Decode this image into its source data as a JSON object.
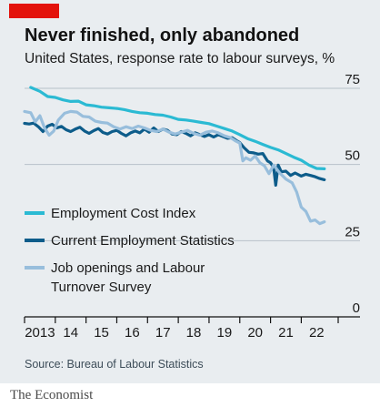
{
  "title": "Never finished, only abandoned",
  "subtitle": "United States, response rate to labour surveys, %",
  "source": "Source: Bureau of Labour Statistics",
  "brand": "The Economist",
  "colors": {
    "background": "#e9edf0",
    "accent_tag": "#e3120b",
    "grid": "#b7c1c9",
    "axis": "#121212"
  },
  "chart_data": {
    "type": "line",
    "xlim": [
      2013.0,
      2023.2
    ],
    "ylim": [
      0,
      75
    ],
    "x_ticks": [
      {
        "value": 2013,
        "label": "2013"
      },
      {
        "value": 2014,
        "label": "14"
      },
      {
        "value": 2015,
        "label": "15"
      },
      {
        "value": 2016,
        "label": "16"
      },
      {
        "value": 2017,
        "label": "17"
      },
      {
        "value": 2018,
        "label": "18"
      },
      {
        "value": 2019,
        "label": "19"
      },
      {
        "value": 2020,
        "label": "20"
      },
      {
        "value": 2021,
        "label": "21"
      },
      {
        "value": 2022,
        "label": "22"
      }
    ],
    "y_ticks": [
      {
        "value": 75,
        "label": "75"
      },
      {
        "value": 50,
        "label": "50"
      },
      {
        "value": 25,
        "label": "25"
      },
      {
        "value": 0,
        "label": "0"
      }
    ],
    "grid": true,
    "legend_position": "bottom-left",
    "series": [
      {
        "name": "Employment Cost Index",
        "color": "#2bbad3",
        "points": [
          [
            2013.2,
            75.3
          ],
          [
            2013.5,
            74.0
          ],
          [
            2013.75,
            72.3
          ],
          [
            2014.0,
            72.0
          ],
          [
            2014.25,
            71.2
          ],
          [
            2014.5,
            70.7
          ],
          [
            2014.75,
            70.8
          ],
          [
            2015.0,
            69.6
          ],
          [
            2015.25,
            69.3
          ],
          [
            2015.5,
            68.8
          ],
          [
            2015.75,
            68.6
          ],
          [
            2016.0,
            68.4
          ],
          [
            2016.25,
            68.0
          ],
          [
            2016.5,
            67.4
          ],
          [
            2016.75,
            67.0
          ],
          [
            2017.0,
            66.8
          ],
          [
            2017.25,
            66.4
          ],
          [
            2017.5,
            66.2
          ],
          [
            2017.75,
            65.6
          ],
          [
            2018.0,
            64.8
          ],
          [
            2018.25,
            64.6
          ],
          [
            2018.5,
            64.2
          ],
          [
            2018.75,
            63.8
          ],
          [
            2019.0,
            63.4
          ],
          [
            2019.25,
            62.6
          ],
          [
            2019.5,
            61.8
          ],
          [
            2019.75,
            61.0
          ],
          [
            2020.0,
            59.8
          ],
          [
            2020.25,
            58.5
          ],
          [
            2020.5,
            57.6
          ],
          [
            2020.75,
            56.6
          ],
          [
            2021.0,
            55.6
          ],
          [
            2021.25,
            54.8
          ],
          [
            2021.5,
            53.6
          ],
          [
            2021.75,
            52.4
          ],
          [
            2022.0,
            51.4
          ],
          [
            2022.25,
            49.8
          ],
          [
            2022.5,
            48.7
          ],
          [
            2022.75,
            48.6
          ]
        ]
      },
      {
        "name": "Current Employment Statistics",
        "color": "#0d5c8a",
        "points": [
          [
            2013.0,
            63.5
          ],
          [
            2013.15,
            63.3
          ],
          [
            2013.3,
            63.6
          ],
          [
            2013.45,
            62.4
          ],
          [
            2013.6,
            60.8
          ],
          [
            2013.75,
            62.6
          ],
          [
            2013.9,
            63.2
          ],
          [
            2014.05,
            62.0
          ],
          [
            2014.2,
            62.5
          ],
          [
            2014.35,
            61.4
          ],
          [
            2014.5,
            60.8
          ],
          [
            2014.65,
            61.6
          ],
          [
            2014.8,
            62.2
          ],
          [
            2014.95,
            61.0
          ],
          [
            2015.1,
            60.2
          ],
          [
            2015.25,
            61.1
          ],
          [
            2015.4,
            61.8
          ],
          [
            2015.55,
            60.5
          ],
          [
            2015.7,
            60.0
          ],
          [
            2015.85,
            60.8
          ],
          [
            2016.0,
            61.2
          ],
          [
            2016.15,
            60.2
          ],
          [
            2016.3,
            59.4
          ],
          [
            2016.45,
            60.4
          ],
          [
            2016.6,
            61.0
          ],
          [
            2016.75,
            60.4
          ],
          [
            2016.9,
            61.6
          ],
          [
            2017.05,
            60.6
          ],
          [
            2017.2,
            62.0
          ],
          [
            2017.35,
            60.8
          ],
          [
            2017.5,
            61.6
          ],
          [
            2017.65,
            61.2
          ],
          [
            2017.8,
            60.0
          ],
          [
            2017.95,
            59.8
          ],
          [
            2018.1,
            60.8
          ],
          [
            2018.25,
            60.2
          ],
          [
            2018.4,
            59.4
          ],
          [
            2018.55,
            60.4
          ],
          [
            2018.7,
            59.8
          ],
          [
            2018.85,
            59.2
          ],
          [
            2019.0,
            59.8
          ],
          [
            2019.15,
            59.0
          ],
          [
            2019.3,
            59.8
          ],
          [
            2019.45,
            59.2
          ],
          [
            2019.6,
            58.6
          ],
          [
            2019.75,
            58.8
          ],
          [
            2019.9,
            57.8
          ],
          [
            2020.0,
            57.2
          ],
          [
            2020.15,
            55.4
          ],
          [
            2020.3,
            54.0
          ],
          [
            2020.45,
            53.8
          ],
          [
            2020.6,
            53.4
          ],
          [
            2020.75,
            53.6
          ],
          [
            2020.9,
            51.2
          ],
          [
            2021.0,
            50.6
          ],
          [
            2021.1,
            49.0
          ],
          [
            2021.17,
            43.2
          ],
          [
            2021.25,
            49.8
          ],
          [
            2021.35,
            47.6
          ],
          [
            2021.5,
            47.8
          ],
          [
            2021.65,
            46.4
          ],
          [
            2021.8,
            47.2
          ],
          [
            2022.0,
            46.2
          ],
          [
            2022.15,
            46.8
          ],
          [
            2022.3,
            46.4
          ],
          [
            2022.45,
            46.0
          ],
          [
            2022.6,
            45.4
          ],
          [
            2022.75,
            45.0
          ]
        ]
      },
      {
        "name": "Job openings and Labour Turnover Survey",
        "color": "#98bedc",
        "points": [
          [
            2013.0,
            67.4
          ],
          [
            2013.2,
            67.0
          ],
          [
            2013.35,
            64.0
          ],
          [
            2013.5,
            66.0
          ],
          [
            2013.65,
            62.0
          ],
          [
            2013.8,
            59.6
          ],
          [
            2013.95,
            61.0
          ],
          [
            2014.1,
            64.6
          ],
          [
            2014.3,
            66.8
          ],
          [
            2014.5,
            67.4
          ],
          [
            2014.7,
            67.2
          ],
          [
            2014.9,
            65.8
          ],
          [
            2015.1,
            65.6
          ],
          [
            2015.3,
            64.2
          ],
          [
            2015.5,
            63.8
          ],
          [
            2015.7,
            63.6
          ],
          [
            2015.9,
            62.4
          ],
          [
            2016.1,
            61.6
          ],
          [
            2016.3,
            62.4
          ],
          [
            2016.5,
            61.8
          ],
          [
            2016.7,
            62.6
          ],
          [
            2016.9,
            62.0
          ],
          [
            2017.1,
            61.2
          ],
          [
            2017.3,
            60.8
          ],
          [
            2017.5,
            61.6
          ],
          [
            2017.7,
            60.6
          ],
          [
            2017.9,
            60.0
          ],
          [
            2018.1,
            60.6
          ],
          [
            2018.3,
            61.2
          ],
          [
            2018.5,
            60.2
          ],
          [
            2018.7,
            59.6
          ],
          [
            2018.9,
            60.6
          ],
          [
            2019.1,
            61.0
          ],
          [
            2019.3,
            60.4
          ],
          [
            2019.5,
            59.4
          ],
          [
            2019.7,
            58.8
          ],
          [
            2019.85,
            57.8
          ],
          [
            2020.0,
            57.0
          ],
          [
            2020.1,
            51.2
          ],
          [
            2020.2,
            52.2
          ],
          [
            2020.35,
            51.4
          ],
          [
            2020.5,
            52.8
          ],
          [
            2020.65,
            50.6
          ],
          [
            2020.8,
            49.6
          ],
          [
            2020.95,
            47.0
          ],
          [
            2021.1,
            49.8
          ],
          [
            2021.3,
            47.2
          ],
          [
            2021.5,
            45.2
          ],
          [
            2021.7,
            44.0
          ],
          [
            2021.85,
            41.0
          ],
          [
            2022.0,
            36.0
          ],
          [
            2022.15,
            34.6
          ],
          [
            2022.3,
            31.4
          ],
          [
            2022.45,
            31.8
          ],
          [
            2022.6,
            30.6
          ],
          [
            2022.75,
            31.2
          ]
        ]
      }
    ],
    "legend": [
      {
        "lines": [
          "Employment Cost Index"
        ],
        "color": "#2bbad3"
      },
      {
        "lines": [
          "Current Employment Statistics"
        ],
        "color": "#0d5c8a"
      },
      {
        "lines": [
          "Job openings and Labour",
          "Turnover Survey"
        ],
        "color": "#98bedc"
      }
    ]
  }
}
